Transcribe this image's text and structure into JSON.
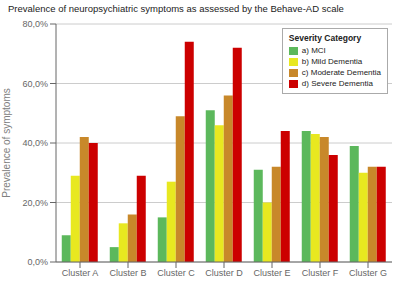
{
  "chart_data": {
    "type": "bar",
    "title": "Prevalence of neuropsychiatric symptoms as assessed by the Behave-AD scale",
    "ylabel": "Prevalence of symptoms",
    "legend_title": "Severity Category",
    "categories": [
      "Cluster A",
      "Cluster B",
      "Cluster C",
      "Cluster D",
      "Cluster E",
      "Cluster F",
      "Cluster G"
    ],
    "series": [
      {
        "name": "a) MCI",
        "color": "#5cb85c",
        "values": [
          9,
          5,
          15,
          51,
          31,
          44,
          39
        ]
      },
      {
        "name": "b) Mild Dementia",
        "color": "#e8e820",
        "values": [
          29,
          13,
          27,
          46,
          20,
          43,
          30
        ]
      },
      {
        "name": "c) Moderate Dementia",
        "color": "#c8882a",
        "values": [
          42,
          16,
          49,
          56,
          32,
          42,
          32
        ]
      },
      {
        "name": "d) Severe Dementia",
        "color": "#cc0000",
        "values": [
          40,
          29,
          74,
          72,
          44,
          36,
          32
        ]
      }
    ],
    "ylim": [
      0,
      80
    ],
    "yticks": [
      {
        "value": 0,
        "label": "0,0%"
      },
      {
        "value": 20,
        "label": "20,0%"
      },
      {
        "value": 40,
        "label": "40,0%"
      },
      {
        "value": 60,
        "label": "60,0%"
      },
      {
        "value": 80,
        "label": "80,0%"
      }
    ],
    "grid": true,
    "legend": "upper right"
  }
}
